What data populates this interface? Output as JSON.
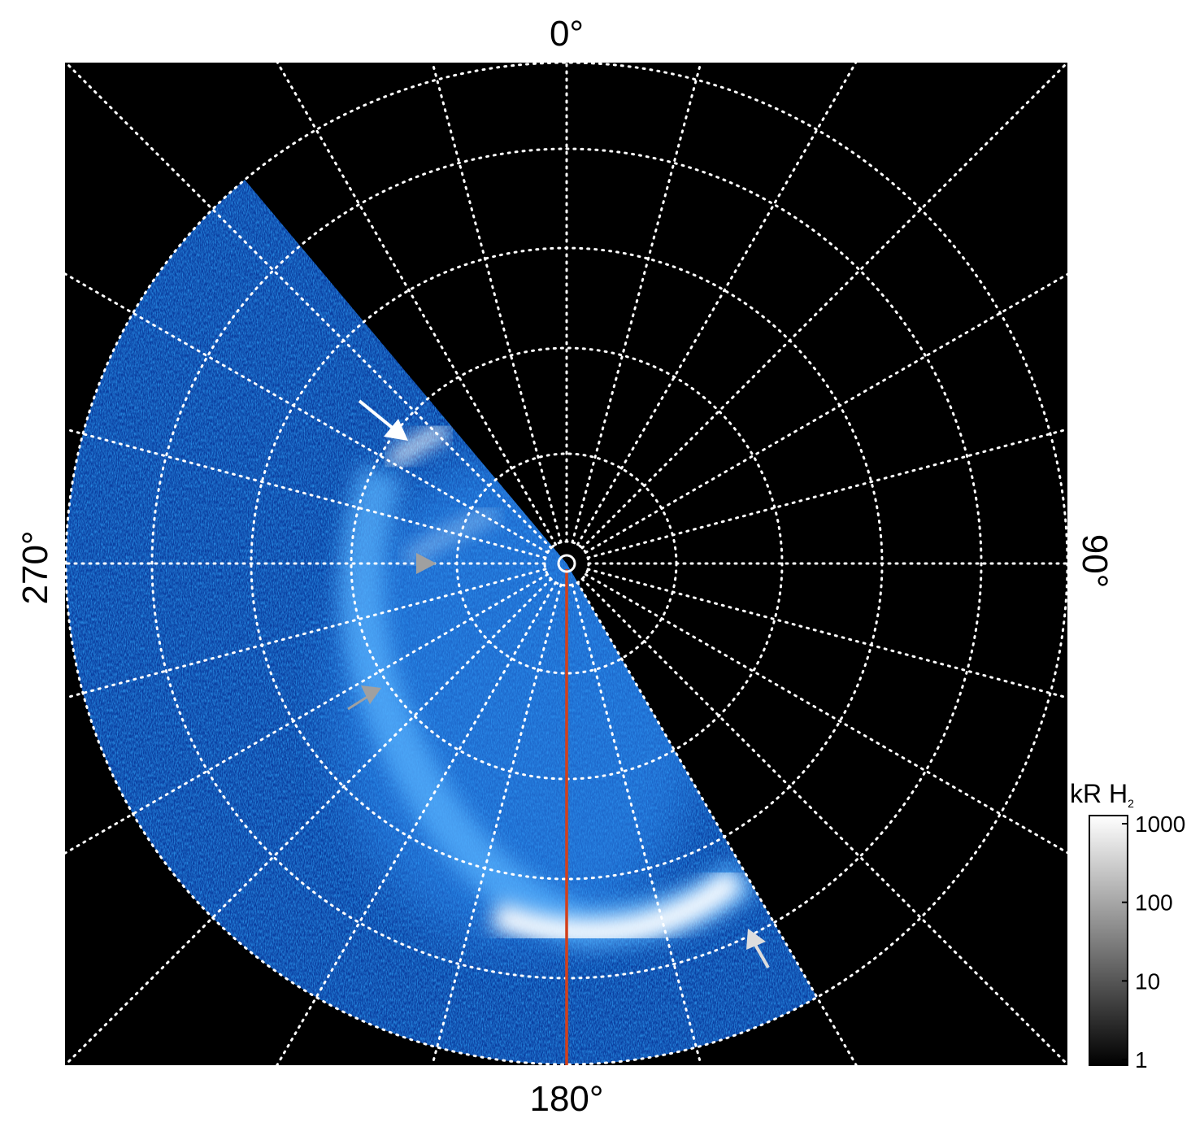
{
  "chart_data": {
    "type": "heatmap",
    "projection": "polar",
    "title": "",
    "angle_labels": {
      "top": "0°",
      "right": "90°",
      "bottom": "180°",
      "left": "270°"
    },
    "meridian_step_deg": 15,
    "colorbar": {
      "title": "kR H",
      "title_subscript": "2",
      "scale": "log",
      "range": [
        1,
        1000
      ],
      "ticks": [
        "1000",
        "100",
        "10",
        "1"
      ],
      "tick_values": [
        1000,
        100,
        10,
        1
      ]
    },
    "coverage_deg": [
      150,
      320
    ],
    "reference_meridian_deg": 180,
    "colors": {
      "background": "#000000",
      "emission": "#1a6ee8",
      "reference_line": "#d2401a",
      "grid": "#ffffff",
      "arrow_white": "#ffffff",
      "arrow_gray": "#a0a0a0"
    }
  }
}
